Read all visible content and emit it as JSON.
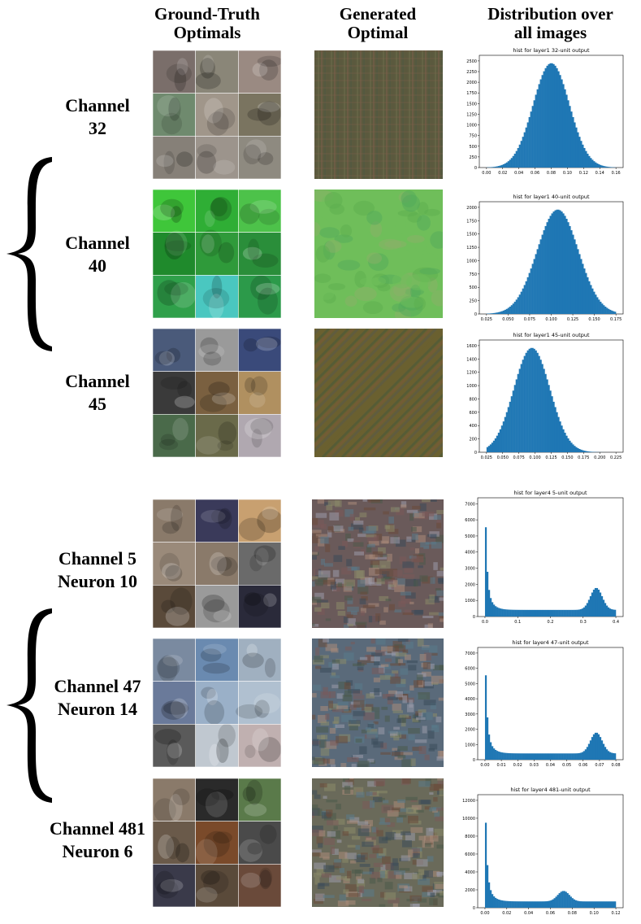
{
  "headers": {
    "gt": [
      "Ground-Truth",
      "Optimals"
    ],
    "gen": [
      "Generated",
      "Optimal"
    ],
    "dist": [
      "Distribution over",
      "all images"
    ]
  },
  "rows": [
    {
      "label": [
        "Channel",
        "32"
      ],
      "gt_tiles": [
        "#7a6e6a",
        "#8a8678",
        "#9a8a82",
        "#6f8a6e",
        "#a0968a",
        "#7a7460",
        "#868078",
        "#9c948c",
        "#8e8a80"
      ],
      "gen_colors": [
        "#5b5a3e",
        "#6b6d4a",
        "#7a5e4a",
        "#4e5a42"
      ],
      "hist": {
        "title": "hist for layer1 32-unit output",
        "ytick_labels": [
          "0",
          "250",
          "500",
          "750",
          "1000",
          "1250",
          "1500",
          "1750",
          "2000",
          "2250",
          "2500"
        ],
        "xtick_labels": [
          "0.00",
          "0.02",
          "0.04",
          "0.06",
          "0.08",
          "0.10",
          "0.12",
          "0.14",
          "0.16"
        ]
      }
    },
    {
      "label": [
        "Channel",
        "40"
      ],
      "gt_tiles": [
        "#3fc63a",
        "#2fae35",
        "#4dc24a",
        "#1f8a2c",
        "#2f9a3a",
        "#2a8e3a",
        "#2fa04a",
        "#4ac7c0",
        "#2c9a4a"
      ],
      "gen_colors": [
        "#6fbe5a",
        "#5aae4e",
        "#8fb06a",
        "#4fa85a"
      ],
      "hist": {
        "title": "hist for layer1 40-unit output",
        "ytick_labels": [
          "0",
          "250",
          "500",
          "750",
          "1000",
          "1250",
          "1500",
          "1750",
          "2000"
        ],
        "xtick_labels": [
          "0.025",
          "0.050",
          "0.075",
          "0.100",
          "0.125",
          "0.150",
          "0.175"
        ]
      }
    },
    {
      "label": [
        "Channel",
        "45"
      ],
      "gt_tiles": [
        "#4a5a7a",
        "#9a9a9a",
        "#3a4a7a",
        "#3a3a3a",
        "#7a6040",
        "#b09060",
        "#4a6a4a",
        "#6a6a4a",
        "#b0a8b0"
      ],
      "gen_colors": [
        "#6a6030",
        "#4a5a3a",
        "#7a5a3a",
        "#5a5a4a"
      ],
      "hist": {
        "title": "hist for layer1 45-unit output",
        "ytick_labels": [
          "0",
          "200",
          "400",
          "600",
          "800",
          "1000",
          "1200",
          "1400",
          "1600"
        ],
        "xtick_labels": [
          "0.025",
          "0.050",
          "0.075",
          "0.100",
          "0.125",
          "0.150",
          "0.175",
          "0.200",
          "0.225"
        ]
      }
    },
    {
      "label": [
        "Channel 5",
        "Neuron 10"
      ],
      "gt_tiles": [
        "#8a7a6a",
        "#3a3a5a",
        "#c8a070",
        "#9a8a7a",
        "#8a7a6a",
        "#6a6a6a",
        "#5a4a3a",
        "#9a9a9a",
        "#2a2a3a"
      ],
      "gen_colors": [
        "#6a5a5a",
        "#5a6a7a",
        "#8a6a5a",
        "#4a5a6a"
      ],
      "hist": {
        "title": "hist for layer4 5-unit output",
        "ytick_labels": [
          "0",
          "1000",
          "2000",
          "3000",
          "4000",
          "5000",
          "6000",
          "7000"
        ],
        "xtick_labels": [
          "0.0",
          "0.1",
          "0.2",
          "0.3",
          "0.4"
        ]
      }
    },
    {
      "label": [
        "Channel 47",
        "Neuron 14"
      ],
      "gt_tiles": [
        "#7a8aa0",
        "#6a8ab0",
        "#a0b0c0",
        "#6a7a9a",
        "#9ab0c8",
        "#b0c0d0",
        "#5a5a5a",
        "#c0c8d0",
        "#c0b0b0"
      ],
      "gen_colors": [
        "#5a6a7a",
        "#6a7a6a",
        "#7a6a5a",
        "#4a6a8a"
      ],
      "hist": {
        "title": "hist for layer4 47-unit output",
        "ytick_labels": [
          "0",
          "1000",
          "2000",
          "3000",
          "4000",
          "5000",
          "6000",
          "7000"
        ],
        "xtick_labels": [
          "0.00",
          "0.01",
          "0.02",
          "0.03",
          "0.04",
          "0.05",
          "0.06",
          "0.07",
          "0.08"
        ]
      }
    },
    {
      "label": [
        "Channel 481",
        "Neuron 6"
      ],
      "gt_tiles": [
        "#8a7a6a",
        "#2a2a2a",
        "#5a7a4a",
        "#6a5a4a",
        "#7a4a2a",
        "#4a4a4a",
        "#3a3a4a",
        "#5a4a3a",
        "#6a4a3a"
      ],
      "gen_colors": [
        "#6a6a5a",
        "#7a5a5a",
        "#5a6a5a",
        "#8a7a6a"
      ],
      "hist": {
        "title": "hist for layer4 481-unit output",
        "ytick_labels": [
          "0",
          "2000",
          "4000",
          "6000",
          "8000",
          "10000",
          "12000"
        ],
        "xtick_labels": [
          "0.00",
          "0.02",
          "0.04",
          "0.06",
          "0.08",
          "0.10",
          "0.12"
        ]
      }
    }
  ],
  "colors": {
    "bar": "#1f77b4",
    "axis": "#000000"
  }
}
